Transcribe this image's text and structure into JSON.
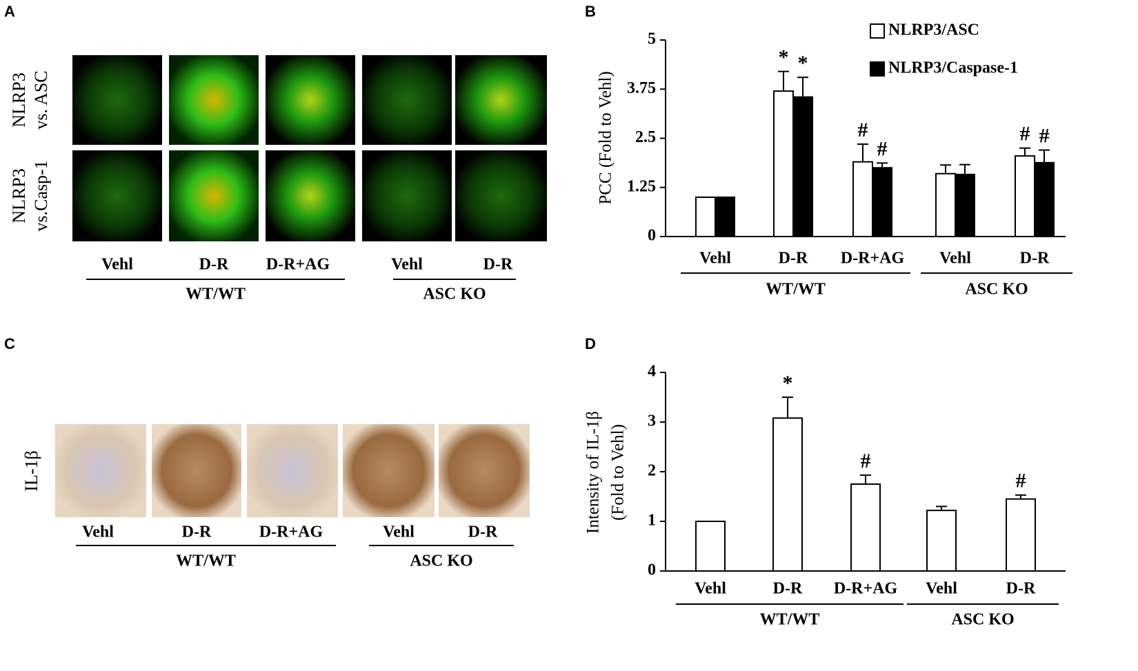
{
  "panels": [
    {
      "letter": "A",
      "row_labels": [
        [
          "NLRP3",
          "vs. ASC"
        ],
        [
          "NLRP3",
          "vs.Casp-1"
        ]
      ],
      "columns": [
        "Vehl",
        "D-R",
        "D-R+AG",
        "Vehl",
        "D-R"
      ],
      "groups": [
        {
          "label": "WT/WT",
          "size": 3
        },
        {
          "label": "ASC KO",
          "size": 2
        }
      ]
    },
    {
      "letter": "B"
    },
    {
      "letter": "C",
      "row_labels": [
        [
          "IL-1β"
        ]
      ],
      "columns": [
        "Vehl",
        "D-R",
        "D-R+AG",
        "Vehl",
        "D-R"
      ],
      "groups": [
        {
          "label": "WT/WT",
          "size": 3
        },
        {
          "label": "ASC KO",
          "size": 2
        }
      ]
    },
    {
      "letter": "D"
    }
  ],
  "chart_data": [
    {
      "type": "bar",
      "y_label": [
        "PCC (Fold to Vehl)"
      ],
      "categories": [
        "Vehl",
        "D-R",
        "D-R+AG",
        "Vehl",
        "D-R"
      ],
      "groups": [
        {
          "label": "WT/WT",
          "size": 3
        },
        {
          "label": "ASC KO",
          "size": 2
        }
      ],
      "series": [
        {
          "name": "NLRP3/ASC",
          "color": "#ffffff",
          "values": [
            1,
            3.7,
            1.9,
            1.6,
            2.05
          ],
          "errors": [
            0,
            0.5,
            0.45,
            0.22,
            0.2
          ],
          "markers": [
            null,
            "*",
            "#",
            null,
            "#"
          ]
        },
        {
          "name": "NLRP3/Caspase-1",
          "color": "#000000",
          "values": [
            1,
            3.55,
            1.75,
            1.58,
            1.88
          ],
          "errors": [
            0,
            0.5,
            0.12,
            0.25,
            0.32
          ],
          "markers": [
            null,
            "*",
            "#",
            null,
            "#"
          ]
        }
      ],
      "ylim": [
        0,
        5
      ],
      "yticks": [
        0,
        1.25,
        2.5,
        3.75,
        5
      ],
      "legend": "top-right"
    },
    {
      "type": "bar",
      "y_label": [
        "Intensity of IL-1β",
        "(Fold to Vehl)"
      ],
      "categories": [
        "Vehl",
        "D-R",
        "D-R+AG",
        "Vehl",
        "D-R"
      ],
      "groups": [
        {
          "label": "WT/WT",
          "size": 3
        },
        {
          "label": "ASC KO",
          "size": 2
        }
      ],
      "series": [
        {
          "color": "#ffffff",
          "values": [
            1,
            3.08,
            1.75,
            1.22,
            1.45
          ],
          "errors": [
            0,
            0.42,
            0.18,
            0.08,
            0.08
          ],
          "markers": [
            null,
            "*",
            "#",
            null,
            "#"
          ]
        }
      ],
      "ylim": [
        0,
        4
      ],
      "yticks": [
        0,
        1,
        2,
        3,
        4
      ]
    }
  ]
}
